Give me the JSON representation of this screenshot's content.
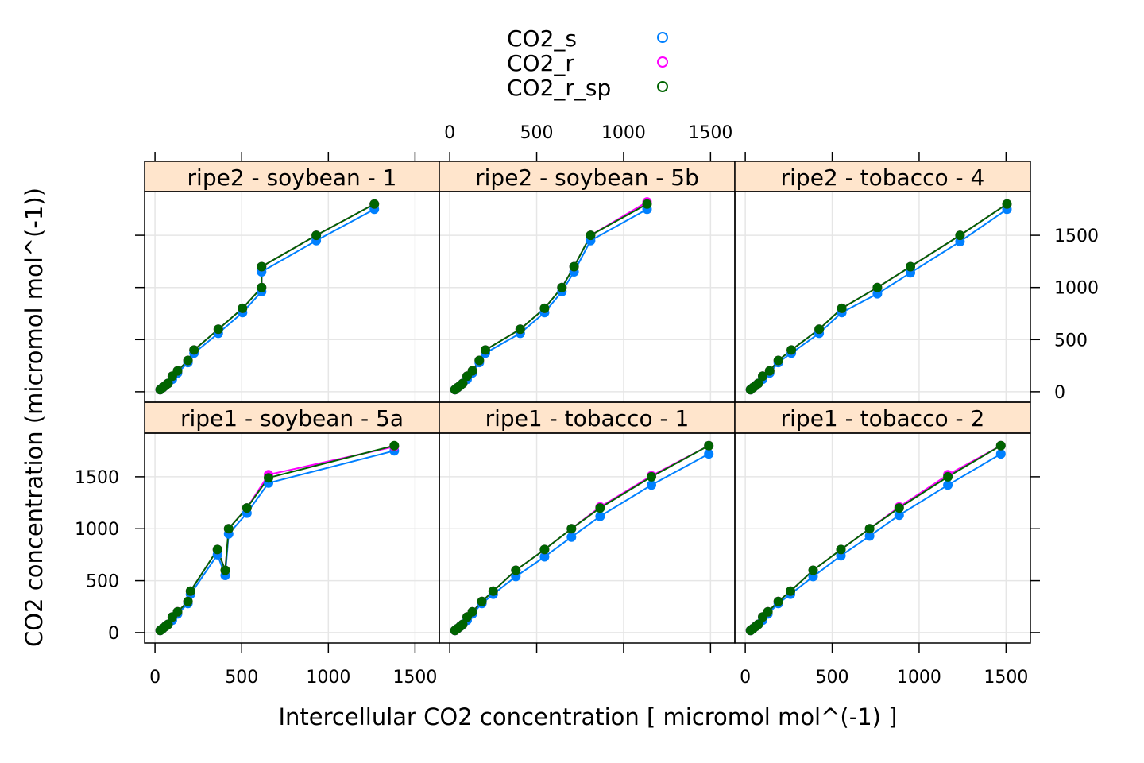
{
  "chart_data": {
    "type": "line",
    "xlabel": "Intercellular CO2 concentration [ micromol mol^(-1) ]",
    "ylabel": "CO2 concentration (micromol mol^(-1))",
    "xlim": [
      -60,
      1640
    ],
    "ylim": [
      -100,
      1920
    ],
    "x_ticks": [
      0,
      500,
      1000,
      1500
    ],
    "y_ticks": [
      0,
      500,
      1000,
      1500
    ],
    "grid": true,
    "legend": {
      "position": "top-center",
      "entries": [
        {
          "name": "CO2_s",
          "color": "#0080ff"
        },
        {
          "name": "CO2_r",
          "color": "#ff00ff"
        },
        {
          "name": "CO2_r_sp",
          "color": "#006400"
        }
      ]
    },
    "panels": [
      {
        "title": "ripe2 - soybean - 1",
        "series": [
          {
            "name": "CO2_s",
            "color": "#0080ff",
            "x": [
              30,
              45,
              60,
              75,
              100,
              130,
              190,
              225,
              365,
              505,
              615,
              615,
              930,
              1265
            ],
            "y": [
              20,
              40,
              60,
              80,
              120,
              180,
              280,
              370,
              560,
              760,
              960,
              1150,
              1450,
              1750
            ]
          },
          {
            "name": "CO2_r",
            "color": "#ff00ff",
            "x": [
              30,
              45,
              60,
              75,
              100,
              130,
              190,
              225,
              365,
              505,
              615,
              615,
              930,
              1265
            ],
            "y": [
              20,
              40,
              60,
              80,
              150,
              200,
              300,
              400,
              600,
              800,
              1000,
              1200,
              1500,
              1800
            ]
          },
          {
            "name": "CO2_r_sp",
            "color": "#006400",
            "x": [
              30,
              45,
              60,
              75,
              100,
              130,
              190,
              225,
              365,
              505,
              615,
              615,
              930,
              1265
            ],
            "y": [
              20,
              40,
              60,
              80,
              150,
              200,
              300,
              400,
              600,
              800,
              1000,
              1200,
              1500,
              1800
            ]
          }
        ]
      },
      {
        "title": "ripe2 - soybean - 5b",
        "series": [
          {
            "name": "CO2_s",
            "color": "#0080ff",
            "x": [
              30,
              45,
              60,
              75,
              100,
              130,
              170,
              205,
              405,
              545,
              645,
              715,
              810,
              1135
            ],
            "y": [
              20,
              40,
              60,
              80,
              120,
              180,
              280,
              370,
              560,
              760,
              960,
              1150,
              1450,
              1750
            ]
          },
          {
            "name": "CO2_r",
            "color": "#ff00ff",
            "x": [
              30,
              45,
              60,
              75,
              100,
              130,
              170,
              205,
              405,
              545,
              645,
              715,
              810,
              1135
            ],
            "y": [
              20,
              40,
              60,
              80,
              150,
              200,
              300,
              400,
              600,
              800,
              1000,
              1200,
              1500,
              1820
            ]
          },
          {
            "name": "CO2_r_sp",
            "color": "#006400",
            "x": [
              30,
              45,
              60,
              75,
              100,
              130,
              170,
              205,
              405,
              545,
              645,
              715,
              810,
              1135
            ],
            "y": [
              20,
              40,
              60,
              80,
              150,
              200,
              300,
              400,
              600,
              800,
              1000,
              1200,
              1500,
              1800
            ]
          }
        ]
      },
      {
        "title": "ripe2 - tobacco - 4",
        "series": [
          {
            "name": "CO2_s",
            "color": "#0080ff",
            "x": [
              30,
              45,
              60,
              75,
              100,
              140,
              190,
              265,
              425,
              555,
              760,
              950,
              1235,
              1505
            ],
            "y": [
              20,
              40,
              60,
              80,
              120,
              180,
              280,
              370,
              560,
              760,
              940,
              1140,
              1440,
              1750
            ]
          },
          {
            "name": "CO2_r",
            "color": "#ff00ff",
            "x": [
              30,
              45,
              60,
              75,
              100,
              140,
              190,
              265,
              425,
              555,
              760,
              950,
              1235,
              1505
            ],
            "y": [
              20,
              40,
              60,
              80,
              150,
              200,
              300,
              400,
              600,
              800,
              1000,
              1200,
              1500,
              1800
            ]
          },
          {
            "name": "CO2_r_sp",
            "color": "#006400",
            "x": [
              30,
              45,
              60,
              75,
              100,
              140,
              190,
              265,
              425,
              555,
              760,
              950,
              1235,
              1505
            ],
            "y": [
              20,
              40,
              60,
              80,
              150,
              200,
              300,
              400,
              600,
              800,
              1000,
              1200,
              1500,
              1800
            ]
          }
        ]
      },
      {
        "title": "ripe1 - soybean - 5a",
        "series": [
          {
            "name": "CO2_s",
            "color": "#0080ff",
            "x": [
              30,
              45,
              60,
              75,
              100,
              130,
              190,
              205,
              360,
              405,
              425,
              530,
              655,
              1380
            ],
            "y": [
              20,
              40,
              60,
              80,
              120,
              180,
              280,
              370,
              750,
              550,
              950,
              1150,
              1440,
              1750
            ]
          },
          {
            "name": "CO2_r",
            "color": "#ff00ff",
            "x": [
              30,
              45,
              60,
              75,
              100,
              130,
              190,
              205,
              360,
              405,
              425,
              530,
              655,
              1380
            ],
            "y": [
              20,
              40,
              60,
              80,
              150,
              200,
              300,
              400,
              800,
              600,
              1000,
              1200,
              1520,
              1790
            ]
          },
          {
            "name": "CO2_r_sp",
            "color": "#006400",
            "x": [
              30,
              45,
              60,
              75,
              100,
              130,
              190,
              205,
              360,
              405,
              425,
              530,
              655,
              1380
            ],
            "y": [
              20,
              40,
              60,
              80,
              150,
              200,
              300,
              400,
              800,
              600,
              1000,
              1200,
              1490,
              1800
            ]
          }
        ]
      },
      {
        "title": "ripe1 - tobacco - 1",
        "series": [
          {
            "name": "CO2_s",
            "color": "#0080ff",
            "x": [
              30,
              45,
              60,
              75,
              100,
              130,
              185,
              250,
              380,
              545,
              700,
              865,
              1160,
              1490
            ],
            "y": [
              20,
              40,
              60,
              80,
              120,
              180,
              280,
              370,
              540,
              730,
              920,
              1120,
              1420,
              1720
            ]
          },
          {
            "name": "CO2_r",
            "color": "#ff00ff",
            "x": [
              30,
              45,
              60,
              75,
              100,
              130,
              185,
              250,
              380,
              545,
              700,
              865,
              1160,
              1490
            ],
            "y": [
              20,
              40,
              60,
              80,
              150,
              200,
              300,
              400,
              600,
              800,
              1000,
              1210,
              1510,
              1800
            ]
          },
          {
            "name": "CO2_r_sp",
            "color": "#006400",
            "x": [
              30,
              45,
              60,
              75,
              100,
              130,
              185,
              250,
              380,
              545,
              700,
              865,
              1160,
              1490
            ],
            "y": [
              20,
              40,
              60,
              80,
              150,
              200,
              300,
              400,
              600,
              800,
              1000,
              1200,
              1500,
              1800
            ]
          }
        ]
      },
      {
        "title": "ripe1 - tobacco - 2",
        "series": [
          {
            "name": "CO2_s",
            "color": "#0080ff",
            "x": [
              30,
              45,
              60,
              75,
              100,
              130,
              190,
              260,
              390,
              550,
              715,
              885,
              1165,
              1470
            ],
            "y": [
              20,
              40,
              60,
              80,
              120,
              180,
              280,
              370,
              540,
              740,
              930,
              1130,
              1420,
              1720
            ]
          },
          {
            "name": "CO2_r",
            "color": "#ff00ff",
            "x": [
              30,
              45,
              60,
              75,
              100,
              130,
              190,
              260,
              390,
              550,
              715,
              885,
              1165,
              1470
            ],
            "y": [
              20,
              40,
              60,
              80,
              150,
              200,
              300,
              400,
              600,
              800,
              1000,
              1210,
              1520,
              1800
            ]
          },
          {
            "name": "CO2_r_sp",
            "color": "#006400",
            "x": [
              30,
              45,
              60,
              75,
              100,
              130,
              190,
              260,
              390,
              550,
              715,
              885,
              1165,
              1470
            ],
            "y": [
              20,
              40,
              60,
              80,
              150,
              200,
              300,
              400,
              600,
              800,
              1000,
              1200,
              1500,
              1800
            ]
          }
        ]
      }
    ]
  }
}
